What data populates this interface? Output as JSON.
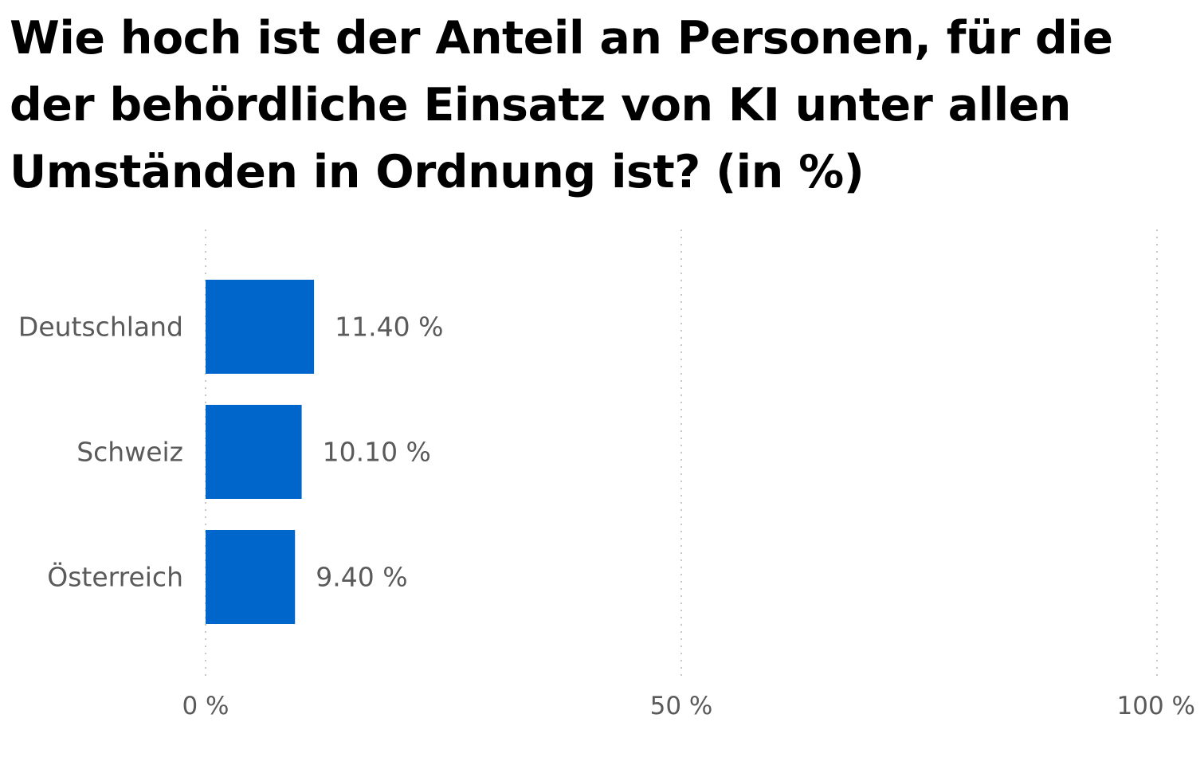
{
  "chart_data": {
    "type": "bar",
    "orientation": "horizontal",
    "title": "Wie hoch ist der Anteil an Personen, für die der behördliche Einsatz von KI unter allen Umständen in Ordnung ist? (in %)",
    "categories": [
      "Deutschland",
      "Schweiz",
      "Österreich"
    ],
    "values": [
      11.4,
      10.1,
      9.4
    ],
    "value_labels": [
      "11.40 %",
      "10.10 %",
      "9.40 %"
    ],
    "xlim": [
      0,
      100
    ],
    "x_ticks": [
      0,
      50,
      100
    ],
    "x_tick_labels": [
      "0 %",
      "50 %",
      "100 %"
    ],
    "xlabel": "",
    "ylabel": "",
    "grid": true,
    "bar_color": "#0066cc",
    "grid_color": "#c8c8c8",
    "text_color": "#5a5a5a"
  }
}
